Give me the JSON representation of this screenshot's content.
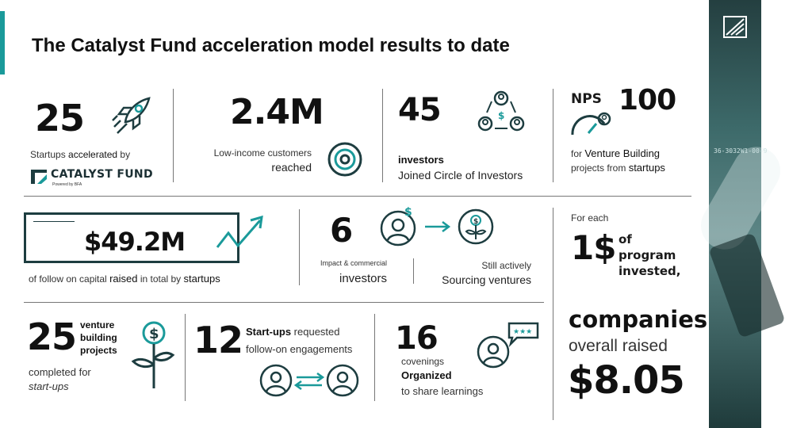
{
  "title": "The Catalyst Fund acceleration model results to date",
  "colors": {
    "accent": "#1a9a9a",
    "dark_teal": "#1d3d40",
    "ink": "#111111"
  },
  "stat_startups": {
    "value": "25",
    "text_plain": "Startups ",
    "text_bold": "accelerated",
    "text_tail": " by",
    "icon": "rocket-icon"
  },
  "catalyst_logo": {
    "name": "CATALYST FUND",
    "subtitle": "Powered by BFA"
  },
  "stat_customers": {
    "value": "2.4M",
    "line1": "Low-income customers",
    "line2": "reached",
    "icon": "target-icon"
  },
  "stat_investors": {
    "value": "45",
    "line1": "investors",
    "line2_plain": "Joined ",
    "line2_tail": "Circle of Investors",
    "icon": "investor-cycle-icon"
  },
  "stat_nps": {
    "label": "NPS",
    "value": "100",
    "line1_plain": "for ",
    "line1_bold": "Venture Building",
    "line2_plain": "projects from ",
    "line2_tail": "startups",
    "icon": "gauge-icon"
  },
  "stat_capital": {
    "value": "$49.2M",
    "text_plain": "of follow on capital ",
    "text_bold": "raised",
    "text_mid": " in total by ",
    "text_tail": "startups",
    "icon": "growth-arrow-icon"
  },
  "stat_impact": {
    "value": "6",
    "left_small": "Impact & commercial",
    "left_big": "investors",
    "right_small": "Still actively",
    "right_big": "Sourcing ventures",
    "icon_person": "investor-person-icon",
    "icon_plant": "money-plant-icon"
  },
  "stat_each": {
    "line1": "For each",
    "value": "1$",
    "of": "of",
    "program": "program",
    "invested": "invested,",
    "companies": "companies",
    "overall": "overall raised",
    "raised": "$8.05"
  },
  "stat_venture": {
    "value": "25",
    "line1": "venture",
    "line2": "building",
    "line3": "projects",
    "sub1": "completed for",
    "sub2": "start-ups",
    "icon": "money-plant-icon"
  },
  "stat_followon": {
    "value": "12",
    "line1_bold": "Start-ups",
    "line1_tail": " requested",
    "line2": "follow-on  engagements",
    "icon": "exchange-icon"
  },
  "stat_convenings": {
    "value": "16",
    "line1": "covenings",
    "line2": "Organized",
    "line3": "to share learnings",
    "icon": "feedback-icon"
  },
  "side_panel": {
    "code_text": "36-3032W1-00-9"
  }
}
